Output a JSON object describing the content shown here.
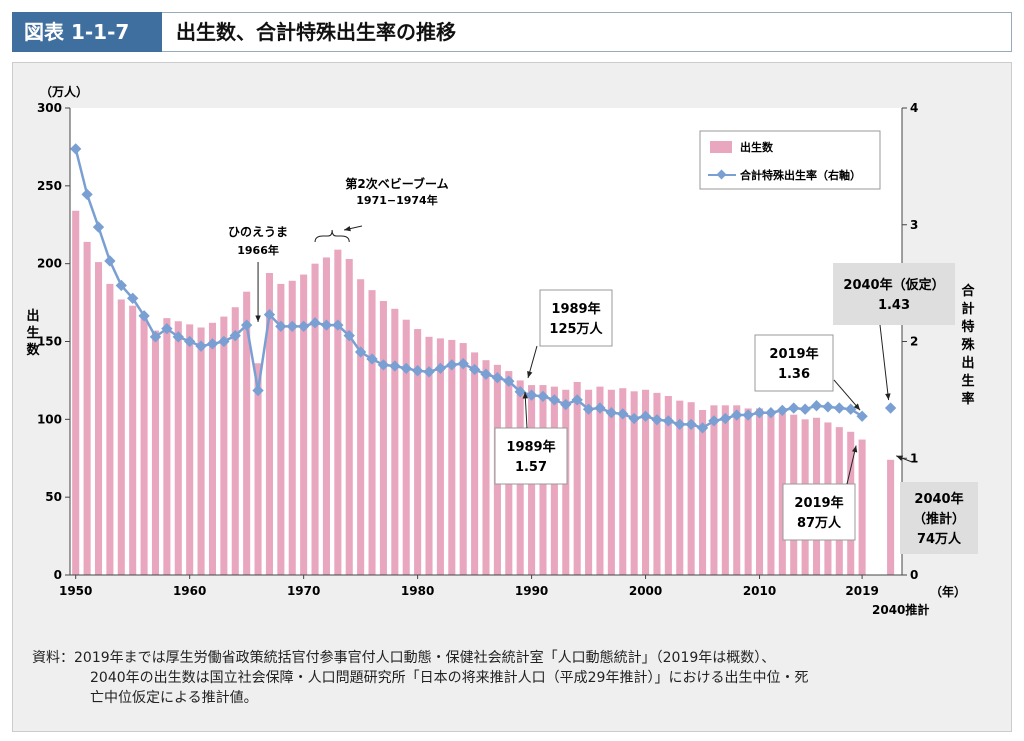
{
  "header": {
    "badge": "図表 1-1-7",
    "title": "出生数、合計特殊出生率の推移"
  },
  "chart_data": {
    "type": "bar",
    "left_unit": "（万人）",
    "left_axis_label": "出生数",
    "right_axis_label": "合計特殊出生率",
    "x_unit": "（年）",
    "y_left_lim": [
      0,
      300
    ],
    "y_left_ticks": [
      "0",
      "50",
      "100",
      "150",
      "200",
      "250",
      "300"
    ],
    "y_right_lim": [
      0,
      4
    ],
    "y_right_ticks": [
      "0",
      "1",
      "2",
      "3",
      "4"
    ],
    "x_ticks": [
      "1950",
      "1960",
      "1970",
      "1980",
      "1990",
      "2000",
      "2010",
      "2019"
    ],
    "x_extra_label": "2040推計",
    "legend": {
      "bar": "出生数",
      "line": "合計特殊出生率（右軸）",
      "placement": "top-right"
    },
    "years": [
      1950,
      1951,
      1952,
      1953,
      1954,
      1955,
      1956,
      1957,
      1958,
      1959,
      1960,
      1961,
      1962,
      1963,
      1964,
      1965,
      1966,
      1967,
      1968,
      1969,
      1970,
      1971,
      1972,
      1973,
      1974,
      1975,
      1976,
      1977,
      1978,
      1979,
      1980,
      1981,
      1982,
      1983,
      1984,
      1985,
      1986,
      1987,
      1988,
      1989,
      1990,
      1991,
      1992,
      1993,
      1994,
      1995,
      1996,
      1997,
      1998,
      1999,
      2000,
      2001,
      2002,
      2003,
      2004,
      2005,
      2006,
      2007,
      2008,
      2009,
      2010,
      2011,
      2012,
      2013,
      2014,
      2015,
      2016,
      2017,
      2018,
      2019
    ],
    "births": [
      234,
      214,
      201,
      187,
      177,
      173,
      167,
      157,
      165,
      163,
      161,
      159,
      162,
      166,
      172,
      182,
      136,
      194,
      187,
      189,
      193,
      200,
      204,
      209,
      203,
      190,
      183,
      176,
      171,
      164,
      158,
      153,
      152,
      151,
      149,
      143,
      138,
      135,
      131,
      125,
      122,
      122,
      121,
      119,
      124,
      119,
      121,
      119,
      120,
      118,
      119,
      117,
      115,
      112,
      111,
      106,
      109,
      109,
      109,
      107,
      107,
      105,
      104,
      103,
      100,
      101,
      98,
      95,
      92,
      87
    ],
    "births_2040": 74,
    "tfr": [
      3.65,
      3.26,
      2.98,
      2.69,
      2.48,
      2.37,
      2.22,
      2.04,
      2.11,
      2.04,
      2.0,
      1.96,
      1.98,
      2.0,
      2.05,
      2.14,
      1.58,
      2.23,
      2.13,
      2.13,
      2.13,
      2.16,
      2.14,
      2.14,
      2.05,
      1.91,
      1.85,
      1.8,
      1.79,
      1.77,
      1.75,
      1.74,
      1.77,
      1.8,
      1.81,
      1.76,
      1.72,
      1.69,
      1.66,
      1.57,
      1.54,
      1.53,
      1.5,
      1.46,
      1.5,
      1.42,
      1.43,
      1.39,
      1.38,
      1.34,
      1.36,
      1.33,
      1.32,
      1.29,
      1.29,
      1.26,
      1.32,
      1.34,
      1.37,
      1.37,
      1.39,
      1.39,
      1.41,
      1.43,
      1.42,
      1.45,
      1.44,
      1.43,
      1.42,
      1.36
    ],
    "tfr_2040": 1.43,
    "annotations": {
      "hinoe": [
        "ひのえうま",
        "1966年"
      ],
      "boom": [
        "第2次ベビーブーム",
        "1971−1974年"
      ],
      "b1989": [
        "1989年",
        "125万人"
      ],
      "t1989": [
        "1989年",
        "1.57"
      ],
      "t2019": [
        "2019年",
        "1.36"
      ],
      "b2019": [
        "2019年",
        "87万人"
      ],
      "t2040": [
        "2040年（仮定）",
        "1.43"
      ],
      "b2040": [
        "2040年",
        "（推計）",
        "74万人"
      ]
    },
    "colors": {
      "bar": "#e9a6bf",
      "line": "#7a9fd2",
      "panel": "#efefef",
      "header": "#3f6f9e"
    }
  },
  "source_note": {
    "line1": "資料：2019年までは厚生労働省政策統括官付参事官付人口動態・保健社会統計室「人口動態統計」（2019年は概数）、",
    "line2": "2040年の出生数は国立社会保障・人口問題研究所「日本の将来推計人口（平成29年推計）」における出生中位・死",
    "line3": "亡中位仮定による推計値。"
  }
}
